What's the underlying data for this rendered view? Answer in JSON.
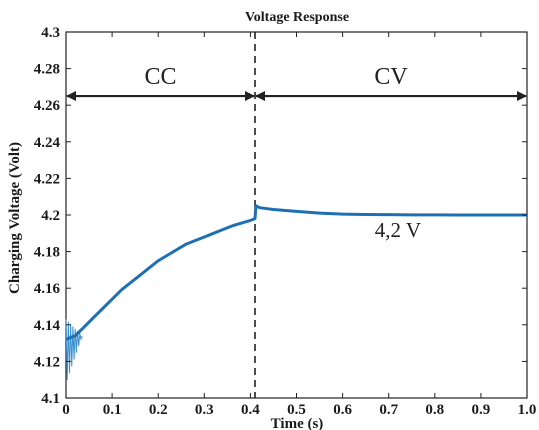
{
  "chart_data": {
    "type": "line",
    "title": "Voltage Response",
    "xlabel": "Time (s)",
    "ylabel": "Charging Voltage (Volt)",
    "xlim": [
      0,
      1.0
    ],
    "ylim": [
      4.1,
      4.3
    ],
    "xticks": [
      "0",
      "0.1",
      "0.2",
      "0.3",
      "0.4",
      "0.5",
      "0.6",
      "0.7",
      "0.8",
      "0.9",
      "1.0"
    ],
    "yticks": [
      "4.1",
      "4.12",
      "4.14",
      "4.16",
      "4.18",
      "4.2",
      "4.22",
      "4.24",
      "4.26",
      "4.28",
      "4.3"
    ],
    "grid": false,
    "series": [
      {
        "color": "#1f6fb5",
        "x": [
          0.0,
          0.02,
          0.04,
          0.06,
          0.08,
          0.1,
          0.12,
          0.14,
          0.16,
          0.18,
          0.2,
          0.22,
          0.24,
          0.26,
          0.28,
          0.3,
          0.32,
          0.34,
          0.36,
          0.38,
          0.4,
          0.41,
          0.412,
          0.42,
          0.45,
          0.5,
          0.55,
          0.6,
          0.65,
          0.7,
          0.75,
          0.8,
          0.85,
          0.9,
          0.95,
          1.0
        ],
        "values": [
          4.132,
          4.134,
          4.139,
          4.144,
          4.149,
          4.154,
          4.159,
          4.163,
          4.167,
          4.171,
          4.175,
          4.178,
          4.181,
          4.184,
          4.186,
          4.188,
          4.19,
          4.192,
          4.194,
          4.1955,
          4.197,
          4.198,
          4.205,
          4.204,
          4.203,
          4.202,
          4.201,
          4.2005,
          4.2003,
          4.2002,
          4.2001,
          4.2001,
          4.2,
          4.2,
          4.2,
          4.2
        ]
      }
    ],
    "oscillation": {
      "color": "#3a8fd0",
      "x_start": 0.0,
      "x_end": 0.035,
      "upper": 4.143,
      "lower": 4.108,
      "settle": 4.134
    },
    "divider_x": 0.41,
    "regions": [
      {
        "label": "CC",
        "x_from": 0.0,
        "x_to": 0.41,
        "y": 4.265
      },
      {
        "label": "CV",
        "x_from": 0.41,
        "x_to": 1.0,
        "y": 4.265
      }
    ],
    "annotations": [
      {
        "text": "4,2 V",
        "x": 0.72,
        "y": 4.188
      }
    ]
  }
}
